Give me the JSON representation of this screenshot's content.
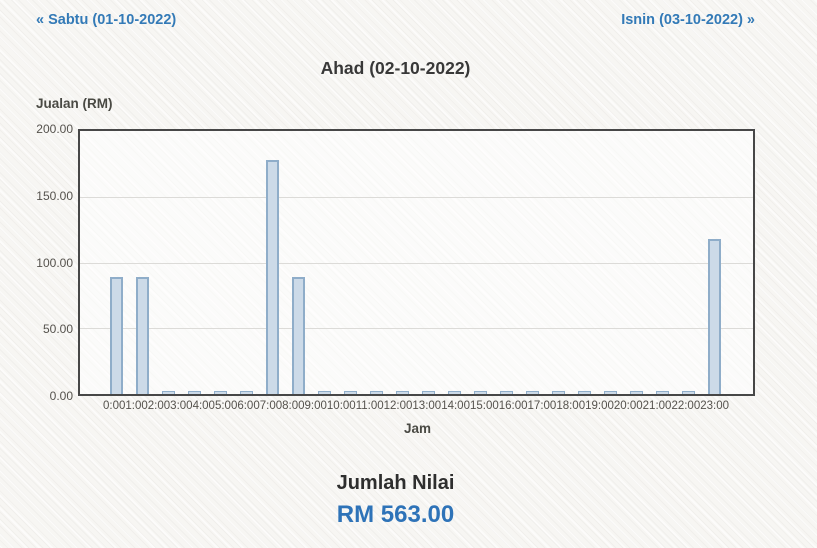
{
  "nav": {
    "prev_label": "« Sabtu (01-10-2022)",
    "next_label": "Isnin (03-10-2022) »"
  },
  "title": "Ahad (02-10-2022)",
  "chart_data": {
    "type": "bar",
    "title": "Ahad (02-10-2022)",
    "ylabel": "Jualan (RM)",
    "xlabel": "Jam",
    "ylim": [
      0,
      200
    ],
    "yticks": [
      "200.00",
      "150.00",
      "100.00",
      "50.00",
      "0.00"
    ],
    "grid": true,
    "legend": "none",
    "categories": [
      "0:00",
      "1:00",
      "2:00",
      "3:00",
      "4:00",
      "5:00",
      "6:00",
      "7:00",
      "8:00",
      "9:00",
      "10:00",
      "11:00",
      "12:00",
      "13:00",
      "14:00",
      "15:00",
      "16:00",
      "17:00",
      "18:00",
      "19:00",
      "20:00",
      "21:00",
      "22:00",
      "23:00"
    ],
    "values": [
      89,
      89,
      0,
      0,
      0,
      0,
      178,
      89,
      0,
      0,
      0,
      0,
      0,
      0,
      0,
      0,
      0,
      0,
      0,
      0,
      0,
      0,
      0,
      118
    ]
  },
  "summary": {
    "label": "Jumlah Nilai",
    "value": "RM 563.00"
  },
  "colors": {
    "link": "#337ab7",
    "total_value": "#2e73b8",
    "bar_fill": "#ccdae8",
    "bar_border": "#8fadc9",
    "plot_border": "#474747",
    "page_background": "#f7f6f3"
  }
}
